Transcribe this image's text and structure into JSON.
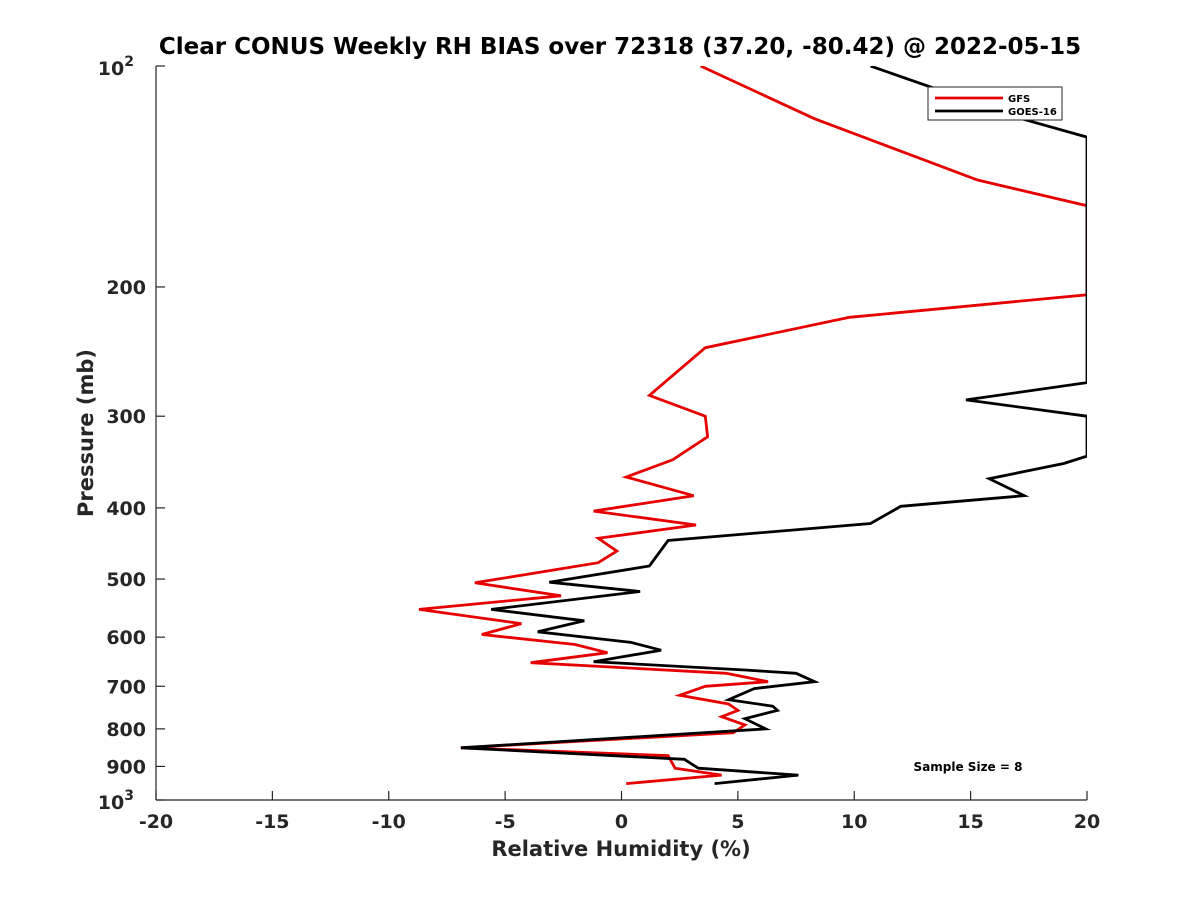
{
  "chart_data": {
    "type": "line",
    "title": "Clear CONUS Weekly RH BIAS over 72318 (37.20, -80.42) @ 2022-05-15",
    "xlabel": "Relative Humidity (%)",
    "ylabel": "Pressure (mb)",
    "xlim": [
      -20,
      20
    ],
    "ylim": [
      100,
      1000
    ],
    "y_scale": "log",
    "y_reversed": true,
    "grid": false,
    "legend_placement": "top-right",
    "x_ticks": [
      "-20",
      "-15",
      "-10",
      "-5",
      "0",
      "5",
      "10",
      "15",
      "20"
    ],
    "y_ticks": [
      {
        "value": 100,
        "base": "10",
        "exp": "2"
      },
      {
        "value": 200,
        "label": "200"
      },
      {
        "value": 300,
        "label": "300"
      },
      {
        "value": 400,
        "label": "400"
      },
      {
        "value": 500,
        "label": "500"
      },
      {
        "value": 600,
        "label": "600"
      },
      {
        "value": 700,
        "label": "700"
      },
      {
        "value": 800,
        "label": "800"
      },
      {
        "value": 900,
        "label": "900"
      },
      {
        "value": 1000,
        "base": "10",
        "exp": "3"
      }
    ],
    "annotation": "Sample Size = 8",
    "series": [
      {
        "name": "GFS",
        "color": "#e60000",
        "points": [
          [
            3.4,
            100
          ],
          [
            8.3,
            118
          ],
          [
            15.3,
            143
          ],
          [
            20,
            155
          ],
          [
            20,
            205
          ],
          [
            9.8,
            220
          ],
          [
            3.6,
            242
          ],
          [
            1.2,
            281
          ],
          [
            3.6,
            300
          ],
          [
            3.7,
            320
          ],
          [
            2.2,
            344
          ],
          [
            0.2,
            363
          ],
          [
            3.1,
            385
          ],
          [
            -1.2,
            404
          ],
          [
            3.2,
            422
          ],
          [
            -1.0,
            440
          ],
          [
            -0.2,
            458
          ],
          [
            -1.0,
            475
          ],
          [
            -6.3,
            506
          ],
          [
            -2.6,
            527
          ],
          [
            -8.7,
            550
          ],
          [
            -4.3,
            575
          ],
          [
            -6.0,
            595
          ],
          [
            -2.0,
            614
          ],
          [
            -0.6,
            630
          ],
          [
            -3.9,
            650
          ],
          [
            4.5,
            672
          ],
          [
            6.3,
            690
          ],
          [
            3.6,
            700
          ],
          [
            2.5,
            720
          ],
          [
            4.6,
            740
          ],
          [
            5.0,
            755
          ],
          [
            4.3,
            770
          ],
          [
            5.3,
            790
          ],
          [
            4.8,
            810
          ],
          [
            -6.9,
            849
          ],
          [
            2.0,
            870
          ],
          [
            2.3,
            905
          ],
          [
            4.3,
            925
          ],
          [
            0.2,
            950
          ]
        ]
      },
      {
        "name": "GOES-16",
        "color": "#000000",
        "points": [
          [
            10.7,
            100
          ],
          [
            17.2,
            118
          ],
          [
            20,
            125
          ],
          [
            20,
            270
          ],
          [
            14.8,
            285
          ],
          [
            20,
            300
          ],
          [
            20,
            340
          ],
          [
            19.0,
            348
          ],
          [
            15.8,
            365
          ],
          [
            17.3,
            385
          ],
          [
            12.0,
            398
          ],
          [
            10.7,
            420
          ],
          [
            2.0,
            443
          ],
          [
            1.2,
            480
          ],
          [
            -3.1,
            505
          ],
          [
            0.8,
            520
          ],
          [
            -5.6,
            550
          ],
          [
            -1.6,
            570
          ],
          [
            -3.6,
            590
          ],
          [
            0.4,
            610
          ],
          [
            1.7,
            625
          ],
          [
            -1.2,
            648
          ],
          [
            5.3,
            665
          ],
          [
            7.5,
            672
          ],
          [
            8.3,
            690
          ],
          [
            5.7,
            705
          ],
          [
            4.6,
            730
          ],
          [
            6.5,
            745
          ],
          [
            6.7,
            755
          ],
          [
            5.3,
            775
          ],
          [
            6.2,
            800
          ],
          [
            -6.9,
            849
          ],
          [
            2.7,
            880
          ],
          [
            3.3,
            905
          ],
          [
            7.6,
            925
          ],
          [
            4.0,
            950
          ]
        ]
      }
    ]
  }
}
